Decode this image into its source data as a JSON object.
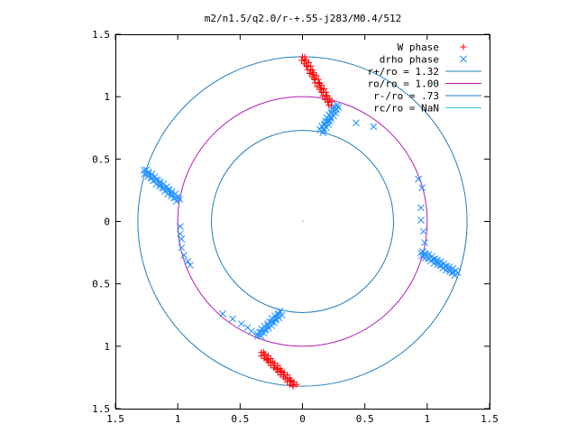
{
  "chart_data": {
    "type": "scatter",
    "title": "m2/n1.5/q2.0/r-+.55-j283/M0.4/512",
    "xlabel": "",
    "ylabel": "",
    "xlim": [
      -1.5,
      1.5
    ],
    "ylim": [
      -1.5,
      1.5
    ],
    "x_ticks": [
      -1.5,
      -1,
      -0.5,
      0,
      0.5,
      1,
      1.5
    ],
    "y_ticks": [
      -1.5,
      -1,
      -0.5,
      0,
      0.5,
      1,
      1.5
    ],
    "x_tick_labels": [
      "1.5",
      "1",
      "0.5",
      "0",
      "0.5",
      "1",
      "1.5"
    ],
    "y_tick_labels": [
      "1.5",
      "1",
      "0.5",
      "0",
      "0.5",
      "1",
      "1.5"
    ],
    "grid": false,
    "legend_position": "top-right",
    "circles": [
      {
        "name": "r+/ro = 1.32",
        "radius": 1.32,
        "color": "#1f7fbf"
      },
      {
        "name": "ro/ro = 1.00",
        "radius": 1.0,
        "color": "#b31ab3"
      },
      {
        "name": "r-/ro = .73",
        "radius": 0.73,
        "color": "#1f7fbf"
      },
      {
        "name": "rc/ro = NaN",
        "radius": null,
        "color": "#33ccdd"
      }
    ],
    "series": [
      {
        "name": "W phase",
        "marker": "plus",
        "color": "#ff0000",
        "arms": [
          {
            "from": [
              0.0,
              1.32
            ],
            "to": [
              0.23,
              0.93
            ],
            "n": 42
          },
          {
            "from": [
              -0.33,
              -1.05
            ],
            "to": [
              -0.06,
              -1.32
            ],
            "n": 40
          }
        ],
        "extra_points": []
      },
      {
        "name": "drho phase",
        "marker": "cross",
        "color": "#1e90ff",
        "arms": [
          {
            "from": [
              0.28,
              0.93
            ],
            "to": [
              0.15,
              0.72
            ],
            "n": 26
          },
          {
            "from": [
              -1.27,
              0.41
            ],
            "to": [
              -0.99,
              0.17
            ],
            "n": 34
          },
          {
            "from": [
              0.95,
              -0.25
            ],
            "to": [
              1.24,
              -0.42
            ],
            "n": 34
          },
          {
            "from": [
              -0.36,
              -0.92
            ],
            "to": [
              -0.17,
              -0.73
            ],
            "n": 26
          }
        ],
        "extra_points": [
          [
            0.43,
            0.79
          ],
          [
            0.57,
            0.76
          ],
          [
            0.93,
            0.34
          ],
          [
            0.96,
            0.27
          ],
          [
            0.95,
            0.11
          ],
          [
            0.95,
            0.01
          ],
          [
            0.97,
            -0.08
          ],
          [
            0.98,
            -0.17
          ],
          [
            -0.98,
            -0.04
          ],
          [
            -0.98,
            -0.1
          ],
          [
            -0.97,
            -0.14
          ],
          [
            -0.97,
            -0.21
          ],
          [
            -0.95,
            -0.27
          ],
          [
            -0.92,
            -0.32
          ],
          [
            -0.9,
            -0.35
          ],
          [
            -0.64,
            -0.74
          ],
          [
            -0.56,
            -0.78
          ],
          [
            -0.49,
            -0.82
          ],
          [
            -0.44,
            -0.85
          ],
          [
            -0.41,
            -0.88
          ]
        ]
      }
    ]
  }
}
